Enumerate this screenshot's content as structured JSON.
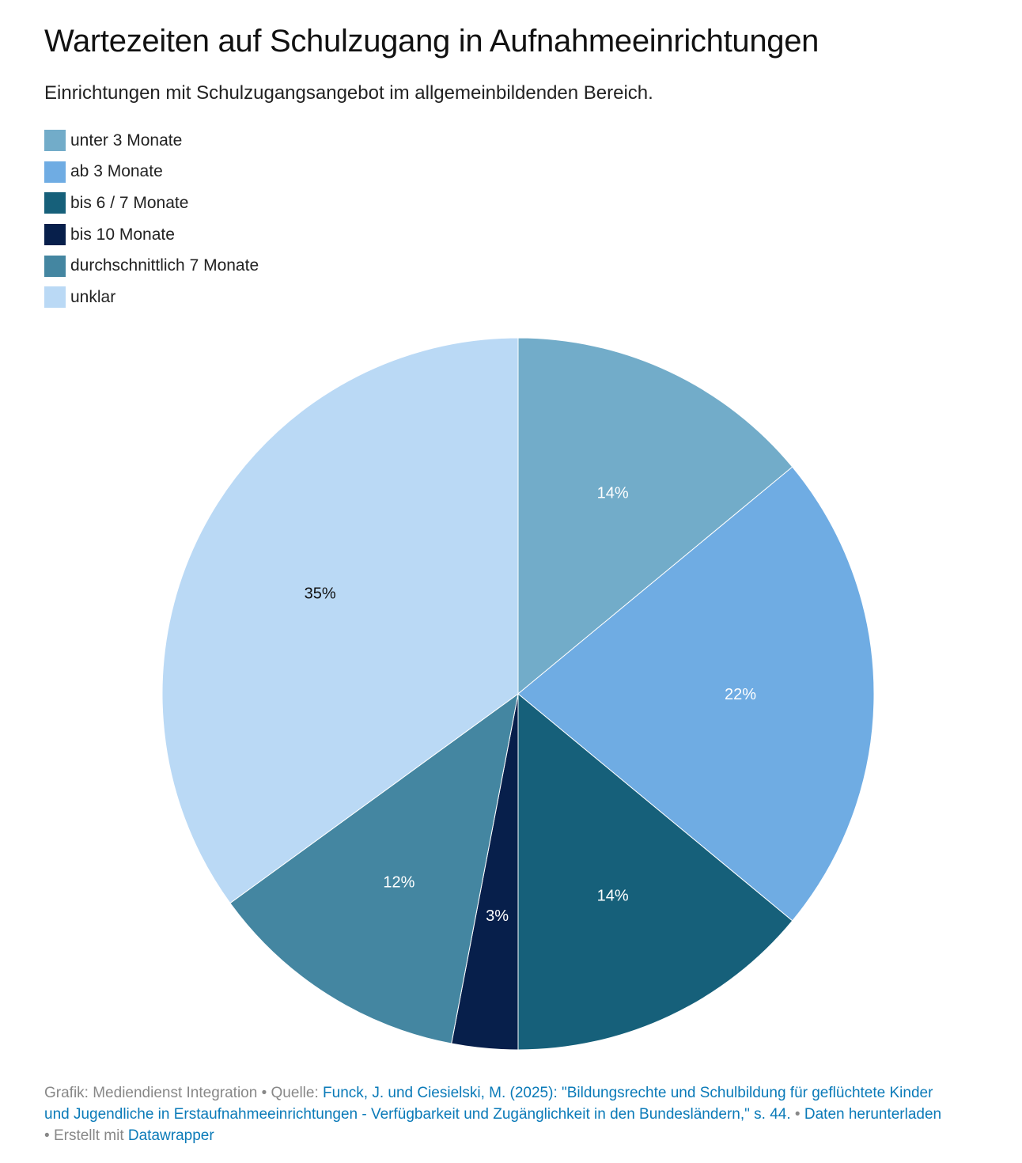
{
  "chart_data": {
    "type": "pie",
    "title": "Wartezeiten auf Schulzugang in Aufnahmeeinrichtungen",
    "subtitle": "Einrichtungen mit Schulzugangsangebot im allgemeinbildenden Bereich.",
    "legend_position": "top-left",
    "slices": [
      {
        "label": "unter 3 Monate",
        "value": 14,
        "display": "14%",
        "color": "#72acc9",
        "text_color": "#ffffff"
      },
      {
        "label": "ab 3 Monate",
        "value": 22,
        "display": "22%",
        "color": "#6facE3",
        "text_color": "#ffffff"
      },
      {
        "label": "bis 6 / 7 Monate",
        "value": 14,
        "display": "14%",
        "color": "#16607a",
        "text_color": "#ffffff"
      },
      {
        "label": "bis 10 Monate",
        "value": 3,
        "display": "3%",
        "color": "#071f4b",
        "text_color": "#ffffff"
      },
      {
        "label": "durchschnittlich 7 Monate",
        "value": 12,
        "display": "12%",
        "color": "#4486a1",
        "text_color": "#ffffff"
      },
      {
        "label": "unklar",
        "value": 35,
        "display": "35%",
        "color": "#bad9f5",
        "text_color": "#111111"
      }
    ]
  },
  "footer": {
    "graphic_label": "Grafik: Mediendienst Integration",
    "sep": " • ",
    "source_label": "Quelle: ",
    "source_link": "Funck, J. und Ciesielski, M. (2025): \"Bildungsrechte und Schulbildung für geflüchtete Kinder und Jugendliche in Erstaufnahmeeinrichtungen - Verfügbarkeit und Zugänglichkeit in den Bundesländern,\" s. 44.",
    "download_link": "Daten herunterladen",
    "created_label": "Erstellt mit ",
    "datawrapper_link": "Datawrapper"
  }
}
